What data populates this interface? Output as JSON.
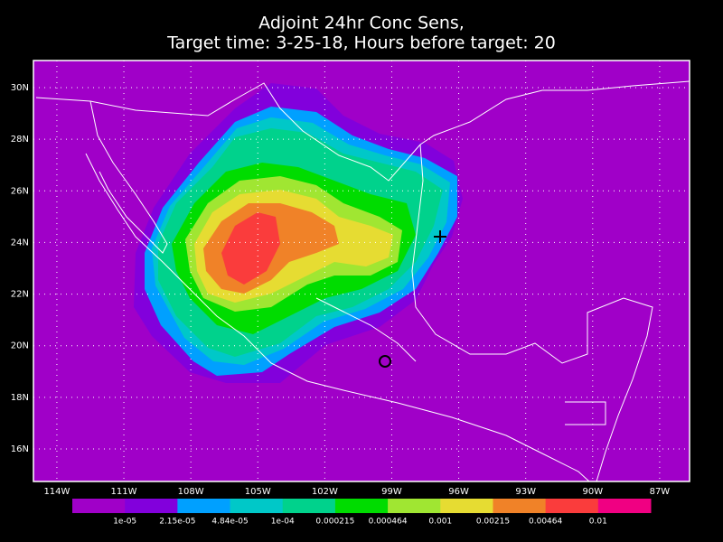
{
  "map": {
    "title": [
      "Adjoint 24hr Conc Sens,",
      "Target time: 3-25-18, Hours before target: 20"
    ],
    "xlim": [
      -115.05,
      -85.66
    ],
    "ylim": [
      14.74,
      31.05
    ],
    "xticks": [
      {
        "value": -114,
        "label": "114W"
      },
      {
        "value": -111,
        "label": "111W"
      },
      {
        "value": -108,
        "label": "108W"
      },
      {
        "value": -105,
        "label": "105W"
      },
      {
        "value": -102,
        "label": "102W"
      },
      {
        "value": -99,
        "label": "99W"
      },
      {
        "value": -96,
        "label": "96W"
      },
      {
        "value": -93,
        "label": "93W"
      },
      {
        "value": -90,
        "label": "90W"
      },
      {
        "value": -87,
        "label": "87W"
      }
    ],
    "yticks": [
      {
        "value": 16,
        "label": "16N"
      },
      {
        "value": 18,
        "label": "18N"
      },
      {
        "value": 20,
        "label": "20N"
      },
      {
        "value": 22,
        "label": "22N"
      },
      {
        "value": 24,
        "label": "24N"
      },
      {
        "value": 26,
        "label": "26N"
      },
      {
        "value": 28,
        "label": "28N"
      },
      {
        "value": 30,
        "label": "30N"
      }
    ],
    "grid": true,
    "colorbar": {
      "colors": [
        "#a000c8",
        "#8200dc",
        "#00a0ff",
        "#00c8c8",
        "#00d28c",
        "#00dc00",
        "#a0e632",
        "#e6dc32",
        "#f08228",
        "#fa3c3c",
        "#f00082"
      ],
      "levels": [
        {
          "value": 1e-05,
          "label": "1e-05"
        },
        {
          "value": 2.15e-05,
          "label": "2.15e-05"
        },
        {
          "value": 4.84e-05,
          "label": "4.84e-05"
        },
        {
          "value": 0.0001,
          "label": "1e-04"
        },
        {
          "value": 0.000215,
          "label": "0.000215"
        },
        {
          "value": 0.000464,
          "label": "0.000464"
        },
        {
          "value": 0.001,
          "label": "0.001"
        },
        {
          "value": 0.00215,
          "label": "0.00215"
        },
        {
          "value": 0.00464,
          "label": "0.00464"
        },
        {
          "value": 0.01,
          "label": "0.01"
        }
      ]
    }
  }
}
